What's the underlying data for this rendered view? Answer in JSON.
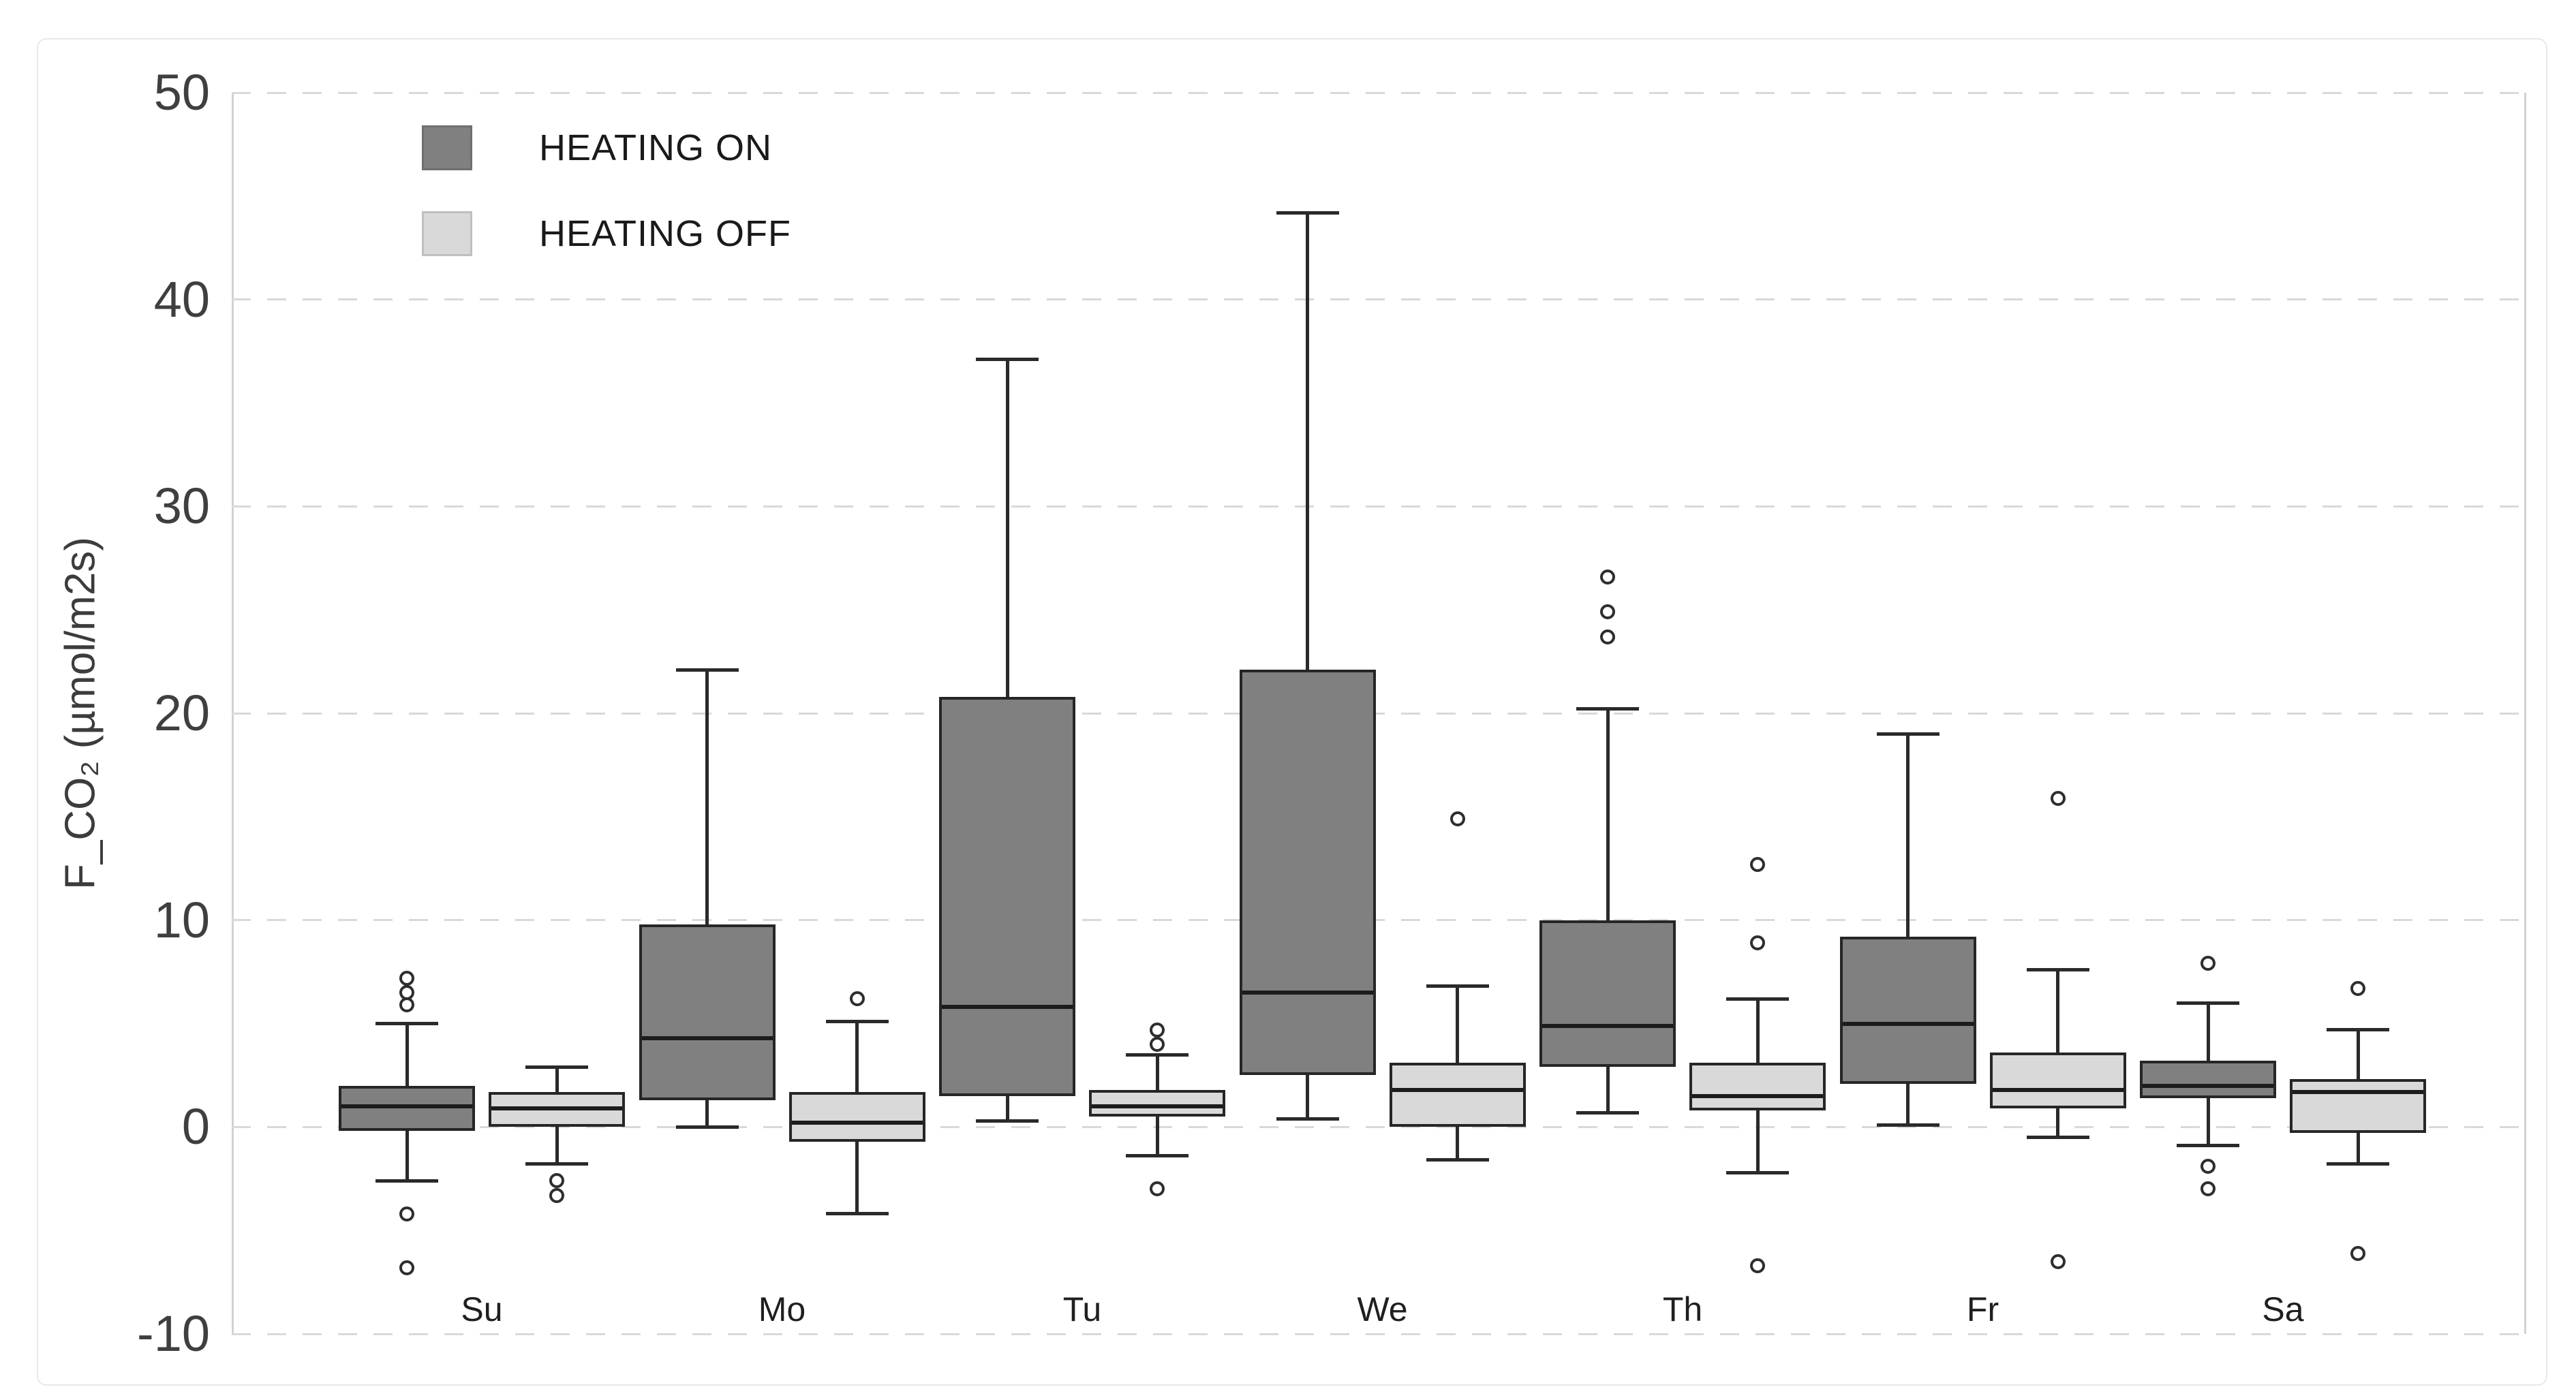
{
  "figure": {
    "background": "#ffffff",
    "border_color": "#e7e9eb"
  },
  "legend": {
    "items": [
      {
        "label": "HEATING ON",
        "swatch_fill": "#808080",
        "swatch_border": "#6f6f6f"
      },
      {
        "label": "HEATING OFF",
        "swatch_fill": "#d9d9d9",
        "swatch_border": "#bfbfbf"
      }
    ]
  },
  "y_axis": {
    "title": "F_CO₂ (µmol/m2s)",
    "tick_labels": [
      "50",
      "40",
      "30",
      "20",
      "10",
      "0",
      "-10"
    ],
    "tick_values": [
      50,
      40,
      30,
      20,
      10,
      0,
      -10
    ],
    "min": -10,
    "max": 50
  },
  "x_axis": {
    "categories": [
      "Su",
      "Mo",
      "Tu",
      "We",
      "Th",
      "Fr",
      "Sa"
    ]
  },
  "colors": {
    "heating_on_fill": "#808080",
    "heating_off_fill": "#d9d9d9",
    "box_border": "#262626",
    "whisker": "#2a2a2a",
    "gridline": "#d9d9d9",
    "spine": "#d2d2d2",
    "tick_text": "#3f3f3f",
    "label_text": "#1f1f1f"
  },
  "chart_data": {
    "type": "boxplot",
    "title": "",
    "xlabel": "",
    "ylabel": "F_CO₂ (µmol/m2s)",
    "ylim": [
      -10,
      50
    ],
    "grid": "dashed-horizontal",
    "legend_position": "top-left-inside",
    "categories": [
      "Su",
      "Mo",
      "Tu",
      "We",
      "Th",
      "Fr",
      "Sa"
    ],
    "series": [
      {
        "name": "HEATING ON",
        "color": "#808080",
        "boxes": [
          {
            "category": "Su",
            "whisker_low": -2.6,
            "q1": -0.2,
            "median": 1.0,
            "q3": 2.0,
            "whisker_high": 5.0,
            "outliers": [
              7.2,
              6.5,
              5.9,
              -4.2,
              -6.8
            ]
          },
          {
            "category": "Mo",
            "whisker_low": 0.0,
            "q1": 1.3,
            "median": 4.3,
            "q3": 9.8,
            "whisker_high": 22.1,
            "outliers": []
          },
          {
            "category": "Tu",
            "whisker_low": 0.3,
            "q1": 1.5,
            "median": 5.8,
            "q3": 20.8,
            "whisker_high": 37.1,
            "outliers": []
          },
          {
            "category": "We",
            "whisker_low": 0.4,
            "q1": 2.5,
            "median": 6.5,
            "q3": 22.1,
            "whisker_high": 44.2,
            "outliers": []
          },
          {
            "category": "Th",
            "whisker_low": 0.7,
            "q1": 2.9,
            "median": 4.9,
            "q3": 10.0,
            "whisker_high": 20.2,
            "outliers": [
              26.6,
              24.9,
              23.7
            ]
          },
          {
            "category": "Fr",
            "whisker_low": 0.1,
            "q1": 2.1,
            "median": 5.0,
            "q3": 9.2,
            "whisker_high": 19.0,
            "outliers": []
          },
          {
            "category": "Sa",
            "whisker_low": -0.9,
            "q1": 1.4,
            "median": 2.0,
            "q3": 3.2,
            "whisker_high": 6.0,
            "outliers": [
              7.9,
              -1.9,
              -3.0
            ]
          }
        ]
      },
      {
        "name": "HEATING OFF",
        "color": "#d9d9d9",
        "boxes": [
          {
            "category": "Su",
            "whisker_low": -1.8,
            "q1": 0.0,
            "median": 0.9,
            "q3": 1.7,
            "whisker_high": 2.9,
            "outliers": [
              -2.6,
              -3.3
            ]
          },
          {
            "category": "Mo",
            "whisker_low": -4.2,
            "q1": -0.7,
            "median": 0.2,
            "q3": 1.7,
            "whisker_high": 5.1,
            "outliers": [
              6.2
            ]
          },
          {
            "category": "Tu",
            "whisker_low": -1.4,
            "q1": 0.5,
            "median": 1.0,
            "q3": 1.8,
            "whisker_high": 3.5,
            "outliers": [
              4.7,
              4.0,
              -3.0
            ]
          },
          {
            "category": "We",
            "whisker_low": -1.6,
            "q1": 0.0,
            "median": 1.8,
            "q3": 3.1,
            "whisker_high": 6.8,
            "outliers": [
              14.9
            ]
          },
          {
            "category": "Th",
            "whisker_low": -2.2,
            "q1": 0.8,
            "median": 1.5,
            "q3": 3.1,
            "whisker_high": 6.2,
            "outliers": [
              12.7,
              8.9,
              -6.7
            ]
          },
          {
            "category": "Fr",
            "whisker_low": -0.5,
            "q1": 0.9,
            "median": 1.8,
            "q3": 3.6,
            "whisker_high": 7.6,
            "outliers": [
              15.9,
              -6.5
            ]
          },
          {
            "category": "Sa",
            "whisker_low": -1.8,
            "q1": -0.3,
            "median": 1.7,
            "q3": 2.3,
            "whisker_high": 4.7,
            "outliers": [
              6.7,
              -6.1
            ]
          }
        ]
      }
    ]
  }
}
